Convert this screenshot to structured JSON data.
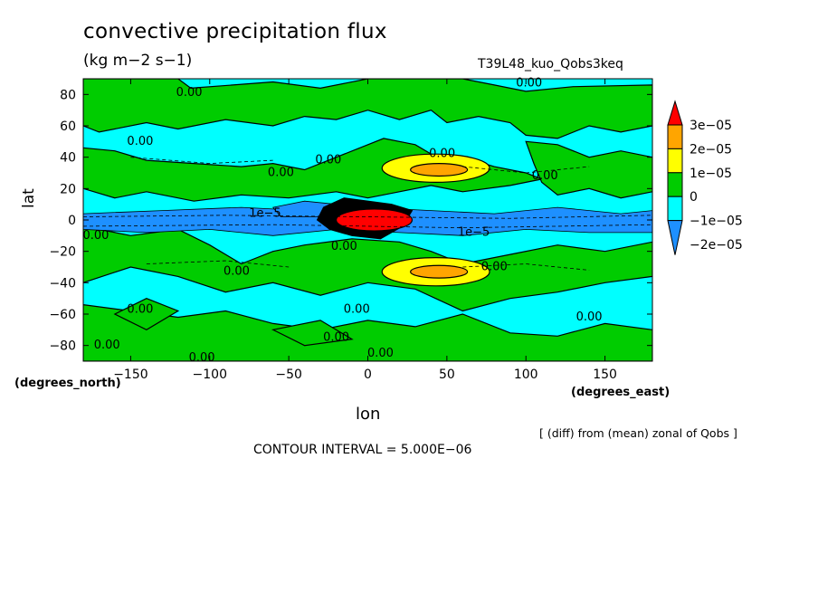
{
  "chart_data": {
    "type": "heatmap",
    "title": "convective precipitation flux",
    "units": "(kg m−2 s−1)",
    "run_label": "T39L48_kuo_Qobs3keq",
    "xlabel": "lon",
    "xlabel_unit": "(degrees_east)",
    "ylabel": "lat",
    "ylabel_unit": "(degrees_north)",
    "xlim": [
      -180,
      180
    ],
    "ylim": [
      -90,
      90
    ],
    "x_ticks": [
      -150,
      -100,
      -50,
      0,
      50,
      100,
      150
    ],
    "y_ticks": [
      80,
      60,
      40,
      20,
      0,
      -20,
      -40,
      -60,
      -80
    ],
    "x_tick_labels": [
      "−150",
      "−100",
      "−50",
      "0",
      "50",
      "100",
      "150"
    ],
    "y_tick_labels": [
      "80",
      "60",
      "40",
      "20",
      "0",
      "−20",
      "−40",
      "−60",
      "−80"
    ],
    "colorbar": {
      "levels": [
        {
          "label": "3e−05",
          "color": "#ff0000"
        },
        {
          "label": "2e−05",
          "color": "#ffa500"
        },
        {
          "label": "1e−05",
          "color": "#ffff00"
        },
        {
          "label": "0",
          "color": "#00cc00"
        },
        {
          "label": "−1e−05",
          "color": "#00ffff"
        },
        {
          "label": "−2e−05",
          "color": "#1e90ff"
        }
      ],
      "colors": [
        "#1e90ff",
        "#00ffff",
        "#00cc00",
        "#ffff00",
        "#ffa500",
        "#ff0000"
      ]
    },
    "contour_labels": [
      {
        "text": "0.00",
        "lon": -113,
        "lat": 81
      },
      {
        "text": "0.00",
        "lon": 102,
        "lat": 87
      },
      {
        "text": "0.00",
        "lon": -144,
        "lat": 50
      },
      {
        "text": "0.00",
        "lon": -55,
        "lat": 30
      },
      {
        "text": "0.00",
        "lon": -25,
        "lat": 38
      },
      {
        "text": "0.00",
        "lon": 47,
        "lat": 42
      },
      {
        "text": "0.00",
        "lon": 112,
        "lat": 28
      },
      {
        "text": "1e−5",
        "lon": -65,
        "lat": 4
      },
      {
        "text": "1e−5",
        "lon": 67,
        "lat": -8
      },
      {
        "text": "0.00",
        "lon": -172,
        "lat": -10
      },
      {
        "text": "0.00",
        "lon": -15,
        "lat": -17
      },
      {
        "text": "0.00",
        "lon": -83,
        "lat": -33
      },
      {
        "text": "0.00",
        "lon": 80,
        "lat": -30
      },
      {
        "text": "0.00",
        "lon": -144,
        "lat": -57
      },
      {
        "text": "0.00",
        "lon": -7,
        "lat": -57
      },
      {
        "text": "0.00",
        "lon": 140,
        "lat": -62
      },
      {
        "text": "0.00",
        "lon": -20,
        "lat": -75
      },
      {
        "text": "0.00",
        "lon": 8,
        "lat": -85
      },
      {
        "text": "0.00",
        "lon": -165,
        "lat": -80
      },
      {
        "text": "0.00",
        "lon": -105,
        "lat": -88
      }
    ]
  },
  "annotations": {
    "difference_note": "[ (diff) from (mean) zonal of Qobs ]",
    "contour_interval": "CONTOUR INTERVAL = 5.000E−06"
  }
}
